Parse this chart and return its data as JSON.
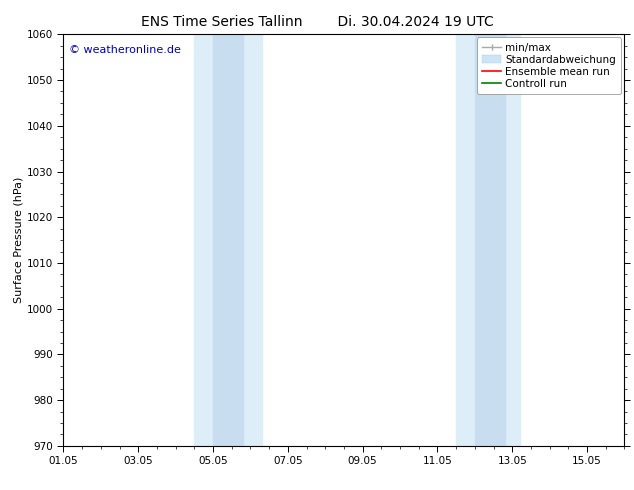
{
  "title_left": "ENS Time Series Tallinn",
  "title_right": "Di. 30.04.2024 19 UTC",
  "ylabel": "Surface Pressure (hPa)",
  "ylim": [
    970,
    1060
  ],
  "yticks": [
    970,
    980,
    990,
    1000,
    1010,
    1020,
    1030,
    1040,
    1050,
    1060
  ],
  "xlim": [
    0,
    15
  ],
  "xtick_labels": [
    "01.05",
    "03.05",
    "05.05",
    "07.05",
    "09.05",
    "11.05",
    "13.05",
    "15.05"
  ],
  "xtick_positions": [
    0,
    2,
    4,
    6,
    8,
    10,
    12,
    14
  ],
  "shaded_bands": [
    {
      "x_start": 3.5,
      "x_end": 4.5
    },
    {
      "x_start": 4.5,
      "x_end": 5.3
    },
    {
      "x_start": 10.5,
      "x_end": 11.3
    },
    {
      "x_start": 11.3,
      "x_end": 12.2
    }
  ],
  "shade_bands_merged": [
    {
      "x_start": 3.5,
      "x_end": 5.3,
      "color": "#ddeef8"
    },
    {
      "x_start": 10.5,
      "x_end": 12.2,
      "color": "#ddeef8"
    }
  ],
  "shade_inner": [
    {
      "x_start": 4.0,
      "x_end": 4.8,
      "color": "#c8ddf0"
    },
    {
      "x_start": 11.0,
      "x_end": 11.8,
      "color": "#c8ddf0"
    }
  ],
  "watermark_text": "© weatheronline.de",
  "watermark_color": "#0000bb",
  "legend_entries": [
    {
      "label": "min/max"
    },
    {
      "label": "Standardabweichung"
    },
    {
      "label": "Ensemble mean run"
    },
    {
      "label": "Controll run"
    }
  ],
  "background_color": "#ffffff",
  "grid_color": "#dddddd",
  "title_fontsize": 10,
  "label_fontsize": 8,
  "tick_fontsize": 7.5,
  "legend_fontsize": 7.5
}
